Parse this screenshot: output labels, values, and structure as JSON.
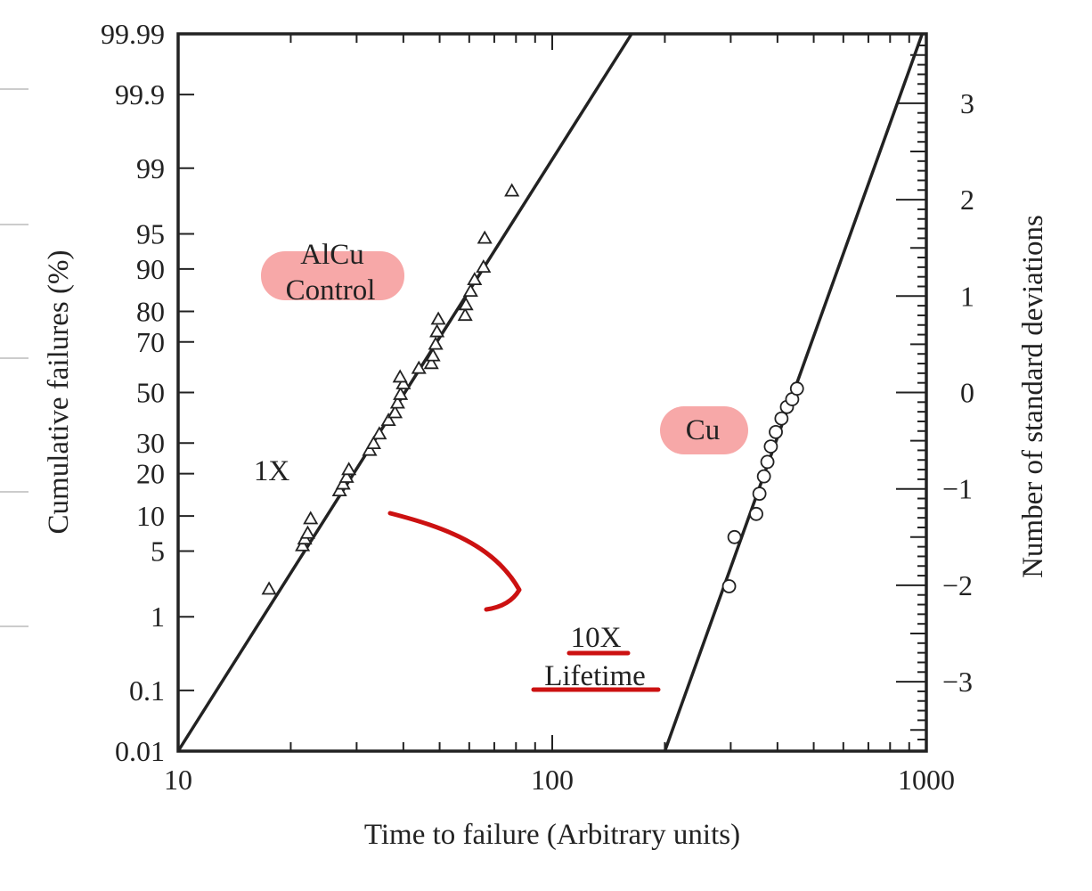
{
  "chart_data": {
    "type": "scatter",
    "subtype": "lognormal probability plot",
    "xlabel": "Time to failure (Arbitrary units)",
    "ylabel": "Cumulative failures (%)",
    "y2label": "Number of standard deviations",
    "xscale": "log",
    "xlim": [
      10,
      1000
    ],
    "ylim_sigma": [
      -3.72,
      3.72
    ],
    "x_tick_labels": [
      "10",
      "100",
      "1000"
    ],
    "x_tick_values": [
      10,
      100,
      1000
    ],
    "y_tick_labels": [
      "99.99",
      "99.9",
      "99",
      "95",
      "90",
      "80",
      "70",
      "50",
      "30",
      "20",
      "10",
      "5",
      "1",
      "0.1",
      "0.01"
    ],
    "y_tick_values": [
      99.99,
      99.9,
      99,
      95,
      90,
      80,
      70,
      50,
      30,
      20,
      10,
      5,
      1,
      0.1,
      0.01
    ],
    "y2_tick_labels": [
      "3",
      "2",
      "1",
      "0",
      "−1",
      "−2",
      "−3"
    ],
    "y2_tick_values": [
      3,
      2,
      1,
      0,
      -1,
      -2,
      -3
    ],
    "series": [
      {
        "name": "AlCu Control",
        "marker": "triangle",
        "points": [
          {
            "x": 17.5,
            "s": -2.04
          },
          {
            "x": 21.5,
            "s": -1.59
          },
          {
            "x": 21.8,
            "s": -1.52
          },
          {
            "x": 22.2,
            "s": -1.46
          },
          {
            "x": 22.6,
            "s": -1.31
          },
          {
            "x": 27,
            "s": -1.02
          },
          {
            "x": 27.6,
            "s": -0.95
          },
          {
            "x": 28.2,
            "s": -0.88
          },
          {
            "x": 28.6,
            "s": -0.8
          },
          {
            "x": 32.5,
            "s": -0.6
          },
          {
            "x": 33.3,
            "s": -0.53
          },
          {
            "x": 34.5,
            "s": -0.43
          },
          {
            "x": 36.5,
            "s": -0.29
          },
          {
            "x": 38,
            "s": -0.21
          },
          {
            "x": 38.6,
            "s": -0.11
          },
          {
            "x": 39.3,
            "s": -0.02
          },
          {
            "x": 40,
            "s": 0.09
          },
          {
            "x": 39.2,
            "s": 0.16
          },
          {
            "x": 44,
            "s": 0.25
          },
          {
            "x": 47.5,
            "s": 0.3
          },
          {
            "x": 48,
            "s": 0.38
          },
          {
            "x": 48.8,
            "s": 0.5
          },
          {
            "x": 49.2,
            "s": 0.63
          },
          {
            "x": 49.6,
            "s": 0.76
          },
          {
            "x": 58.5,
            "s": 0.8
          },
          {
            "x": 58.8,
            "s": 0.91
          },
          {
            "x": 60.5,
            "s": 1.05
          },
          {
            "x": 62,
            "s": 1.17
          },
          {
            "x": 65.5,
            "s": 1.3
          },
          {
            "x": 66,
            "s": 1.6
          },
          {
            "x": 78,
            "s": 2.09
          }
        ]
      },
      {
        "name": "Cu",
        "marker": "circle",
        "points": [
          {
            "x": 297,
            "s": -2.01
          },
          {
            "x": 307,
            "s": -1.5
          },
          {
            "x": 351,
            "s": -1.26
          },
          {
            "x": 358,
            "s": -1.05
          },
          {
            "x": 368,
            "s": -0.87
          },
          {
            "x": 376,
            "s": -0.72
          },
          {
            "x": 384,
            "s": -0.56
          },
          {
            "x": 396,
            "s": -0.41
          },
          {
            "x": 410,
            "s": -0.27
          },
          {
            "x": 424,
            "s": -0.15
          },
          {
            "x": 438,
            "s": -0.07
          },
          {
            "x": 451,
            "s": 0.04
          }
        ]
      }
    ],
    "fit_lines": [
      {
        "name": "AlCu fit",
        "x_at_minus3_72": 10,
        "x_at_plus3_72": 163
      },
      {
        "name": "Cu fit",
        "x_at_minus3_72": 200,
        "x_at_plus3_72": 975
      }
    ],
    "annotations": {
      "alcu_label": [
        "AlCu",
        "Control"
      ],
      "cu_label": "Cu",
      "one_x": "1X",
      "ten_x": "10X",
      "lifetime": "Lifetime"
    },
    "colors": {
      "highlight": "#f7a8a8",
      "ink_red": "#cc1111",
      "axis": "#222222"
    }
  }
}
